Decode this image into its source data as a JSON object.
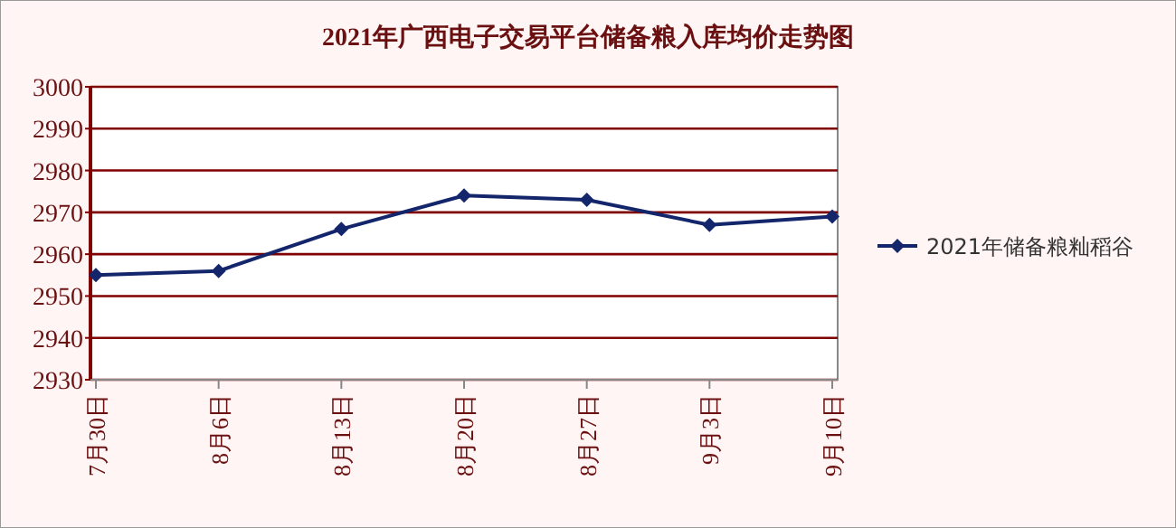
{
  "chart_data": {
    "type": "line",
    "title": "2021年广西电子交易平台储备粮入库均价走势图",
    "categories": [
      "7月30日",
      "8月6日",
      "8月13日",
      "8月20日",
      "8月27日",
      "9月3日",
      "9月10日"
    ],
    "series": [
      {
        "name": "2021年储备粮籼稻谷",
        "color": "#14266b",
        "values": [
          2955,
          2956,
          2966,
          2974,
          2973,
          2967,
          2969
        ]
      }
    ],
    "ylim": [
      2930,
      3000
    ],
    "yticks": [
      2930,
      2940,
      2950,
      2960,
      2970,
      2980,
      2990,
      3000
    ],
    "grid": "y",
    "legend": "right",
    "marker": "diamond"
  }
}
